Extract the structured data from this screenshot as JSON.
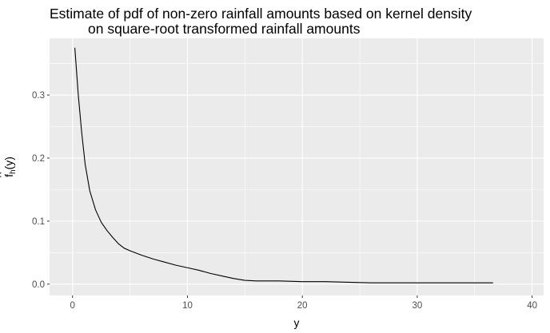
{
  "chart_data": {
    "type": "line",
    "title_line1": "Estimate of pdf of non-zero rainfall amounts based on kernel density",
    "title_line2": "on square-root transformed rainfall amounts",
    "xlabel": "y",
    "ylabel_main": "f",
    "ylabel_hat": "^",
    "ylabel_sub": "h",
    "ylabel_arg": "(y)",
    "xlim": [
      -2,
      41
    ],
    "ylim": [
      -0.018,
      0.39
    ],
    "x_ticks": [
      0,
      10,
      20,
      30,
      40
    ],
    "x_tick_labels": [
      "0",
      "10",
      "20",
      "30",
      "40"
    ],
    "y_ticks": [
      0.0,
      0.1,
      0.2,
      0.3
    ],
    "y_tick_labels": [
      "0.0",
      "0.1",
      "0.2",
      "0.3"
    ],
    "grid": true,
    "colors": {
      "panel": "#ebebeb",
      "grid": "#ffffff",
      "line": "#000000"
    },
    "series": [
      {
        "x": [
          0.2,
          0.5,
          0.8,
          1.1,
          1.5,
          2.0,
          2.5,
          3.0,
          3.5,
          4.0,
          4.5,
          5.0,
          6.0,
          7.0,
          8.0,
          9.0,
          10.0,
          11.0,
          12.0,
          13.0,
          14.0,
          15.0,
          16.0,
          18.0,
          20.0,
          22.0,
          24.0,
          26.0,
          28.0,
          30.0,
          32.0,
          34.0,
          36.6
        ],
        "y": [
          0.375,
          0.3,
          0.24,
          0.19,
          0.148,
          0.118,
          0.098,
          0.085,
          0.074,
          0.064,
          0.057,
          0.053,
          0.046,
          0.04,
          0.035,
          0.03,
          0.026,
          0.022,
          0.017,
          0.013,
          0.009,
          0.006,
          0.005,
          0.005,
          0.004,
          0.004,
          0.003,
          0.002,
          0.002,
          0.002,
          0.002,
          0.002,
          0.002
        ]
      }
    ]
  }
}
